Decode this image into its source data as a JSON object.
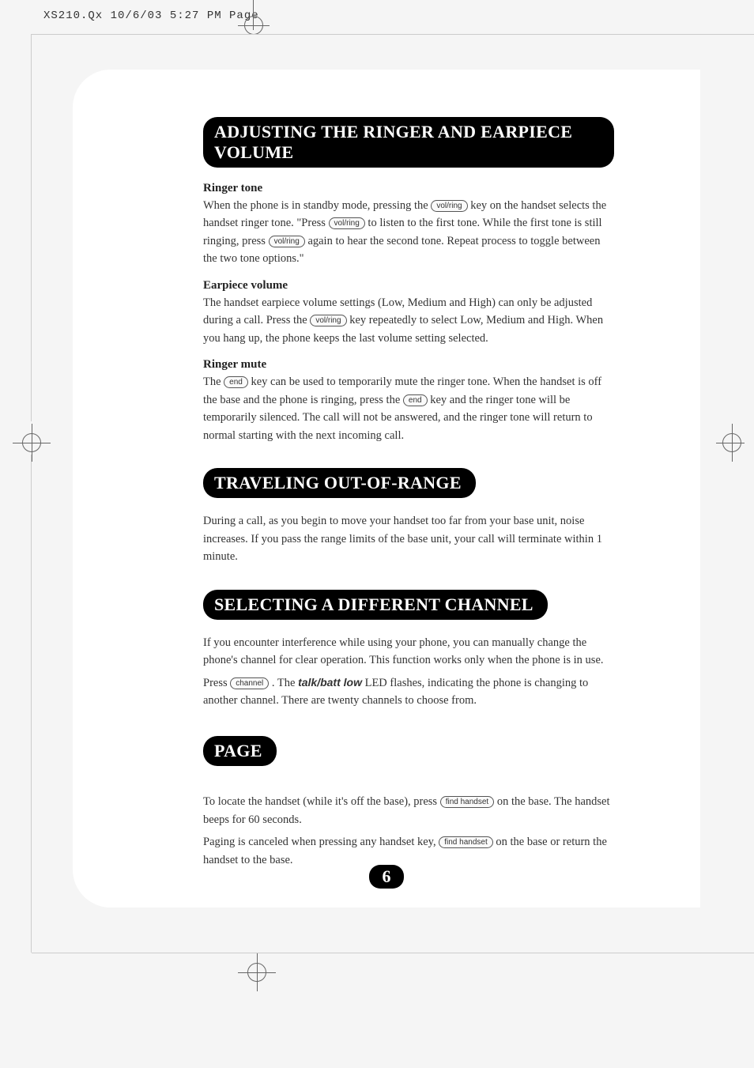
{
  "header": {
    "file_info": "XS210.Qx  10/6/03 5:27 PM  Page"
  },
  "sections": {
    "adjusting": {
      "heading": "ADJUSTING THE RINGER AND EARPIECE VOLUME",
      "ringer_tone": {
        "title": "Ringer tone",
        "text1": "When the phone is in standby mode, pressing the ",
        "btn1": "vol/ring",
        "text2": " key on the handset selects the handset ringer tone. \"Press ",
        "btn2": "vol/ring",
        "text3": " to listen to the first tone. While the first tone is still ringing, press ",
        "btn3": "vol/ring",
        "text4": " again to hear the second tone. Repeat process to toggle between the two tone options.\""
      },
      "earpiece": {
        "title": "Earpiece volume",
        "text1": "The handset earpiece volume settings (Low, Medium and High) can only be adjusted during a call. Press the ",
        "btn1": "vol/ring",
        "text2": " key repeatedly to select Low, Medium and High. When you hang up, the phone keeps the last volume setting selected."
      },
      "mute": {
        "title": "Ringer mute",
        "text1": "The ",
        "btn1": "end",
        "text2": " key can be used to temporarily mute the ringer tone. When the handset is off the base and the phone is ringing, press the ",
        "btn2": "end",
        "text3": " key and the ringer tone will be temporarily silenced. The call will not be answered, and the ringer tone will return to normal starting with the next incoming call."
      }
    },
    "traveling": {
      "heading": "TRAVELING OUT-OF-RANGE",
      "body": "During a call, as you begin to move your handset too far from your base unit, noise increases. If you pass the range limits of the base unit, your call will terminate within 1 minute."
    },
    "selecting": {
      "heading": "SELECTING A DIFFERENT CHANNEL",
      "text1": "If you encounter interference while using your phone, you can manually change the phone's channel for clear operation. This function works only when the phone is in use.",
      "text2a": "Press ",
      "btn1": "channel",
      "text2b": " . The ",
      "led": "talk/batt low",
      "text2c": " LED flashes, indicating the phone is changing to another channel. There are twenty channels to choose from."
    },
    "page": {
      "heading": "PAGE",
      "text1a": "To locate the handset (while it's off the base), press ",
      "btn1": "find handset",
      "text1b": " on the base. The handset beeps for 60 seconds.",
      "text2a": "Paging is canceled when pressing any handset key, ",
      "btn2": "find handset",
      "text2b": " on the base or return the handset to the base."
    }
  },
  "page_number": "6"
}
